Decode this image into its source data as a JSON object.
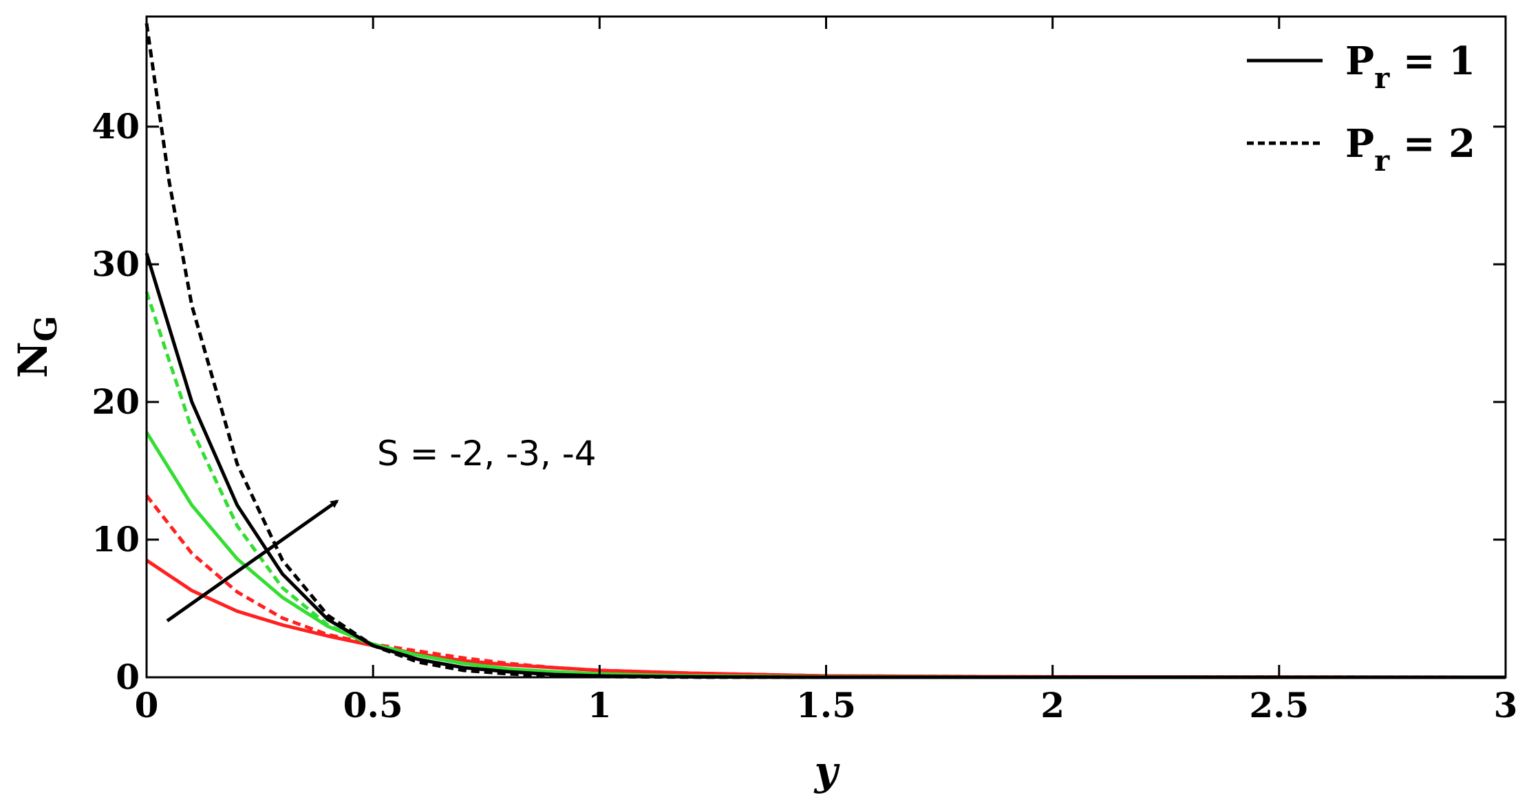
{
  "chart_data": {
    "type": "line",
    "xlabel": "y",
    "ylabel_main": "N",
    "ylabel_sub": "G",
    "xlim": [
      0,
      3
    ],
    "ylim": [
      0,
      48
    ],
    "xticks": [
      0,
      0.5,
      1,
      1.5,
      2,
      2.5,
      3
    ],
    "xtick_labels": [
      "0",
      "0.5",
      "1",
      "1.5",
      "2",
      "2.5",
      "3"
    ],
    "yticks": [
      0,
      10,
      20,
      30,
      40
    ],
    "ytick_labels": [
      "0",
      "10",
      "20",
      "30",
      "40"
    ],
    "grid": false,
    "legend_position": "top-right",
    "legend": [
      {
        "style": "solid",
        "main": "P",
        "sub": "r",
        "rest": " = 1"
      },
      {
        "style": "dashed",
        "main": "P",
        "sub": "r",
        "rest": " = 2"
      }
    ],
    "annotation": {
      "text": "S = -2, -3, -4"
    },
    "series": [
      {
        "color": "#ff2020",
        "style": "solid",
        "x": [
          0,
          0.1,
          0.2,
          0.3,
          0.4,
          0.5,
          0.6,
          0.7,
          0.8,
          0.9,
          1.0,
          1.2,
          1.5,
          2.0,
          3.0
        ],
        "y": [
          8.5,
          6.3,
          4.8,
          3.8,
          3.0,
          2.3,
          1.7,
          1.2,
          0.9,
          0.7,
          0.5,
          0.3,
          0.1,
          0.03,
          0
        ]
      },
      {
        "color": "#ff2020",
        "style": "dashed",
        "x": [
          0,
          0.1,
          0.2,
          0.3,
          0.4,
          0.5,
          0.6,
          0.7,
          0.8,
          0.9,
          1.0,
          1.2,
          1.5,
          2.0,
          3.0
        ],
        "y": [
          13.2,
          9.0,
          6.2,
          4.3,
          3.1,
          2.4,
          1.9,
          1.4,
          1.0,
          0.7,
          0.5,
          0.3,
          0.1,
          0.03,
          0
        ]
      },
      {
        "color": "#33dd33",
        "style": "solid",
        "x": [
          0,
          0.1,
          0.2,
          0.3,
          0.4,
          0.5,
          0.6,
          0.7,
          0.8,
          0.9,
          1.0,
          1.2,
          1.5,
          2.0,
          3.0
        ],
        "y": [
          17.8,
          12.5,
          8.6,
          5.8,
          3.7,
          2.4,
          1.6,
          1.0,
          0.6,
          0.4,
          0.25,
          0.1,
          0.03,
          0,
          0
        ]
      },
      {
        "color": "#33dd33",
        "style": "dashed",
        "x": [
          0,
          0.1,
          0.2,
          0.3,
          0.4,
          0.5,
          0.6,
          0.7,
          0.8,
          0.9,
          1.0,
          1.2,
          1.5,
          2.0,
          3.0
        ],
        "y": [
          28.0,
          18.0,
          11.0,
          6.5,
          3.8,
          2.3,
          1.6,
          1.0,
          0.6,
          0.35,
          0.2,
          0.08,
          0.02,
          0,
          0
        ]
      },
      {
        "color": "#000000",
        "style": "solid",
        "x": [
          0,
          0.1,
          0.2,
          0.3,
          0.4,
          0.5,
          0.6,
          0.7,
          0.8,
          0.9,
          1.0,
          1.2,
          1.5,
          2.0,
          3.0
        ],
        "y": [
          30.8,
          20.0,
          12.5,
          7.5,
          4.2,
          2.3,
          1.3,
          0.7,
          0.4,
          0.2,
          0.1,
          0.03,
          0,
          0,
          0
        ]
      },
      {
        "color": "#000000",
        "style": "dashed",
        "x": [
          0,
          0.05,
          0.1,
          0.2,
          0.3,
          0.4,
          0.5,
          0.6,
          0.7,
          0.8,
          0.9,
          1.0,
          1.2,
          1.5,
          3.0
        ],
        "y": [
          47.5,
          36.0,
          27.0,
          15.5,
          8.5,
          4.5,
          2.3,
          1.1,
          0.5,
          0.25,
          0.1,
          0.05,
          0.01,
          0,
          0
        ]
      }
    ]
  }
}
